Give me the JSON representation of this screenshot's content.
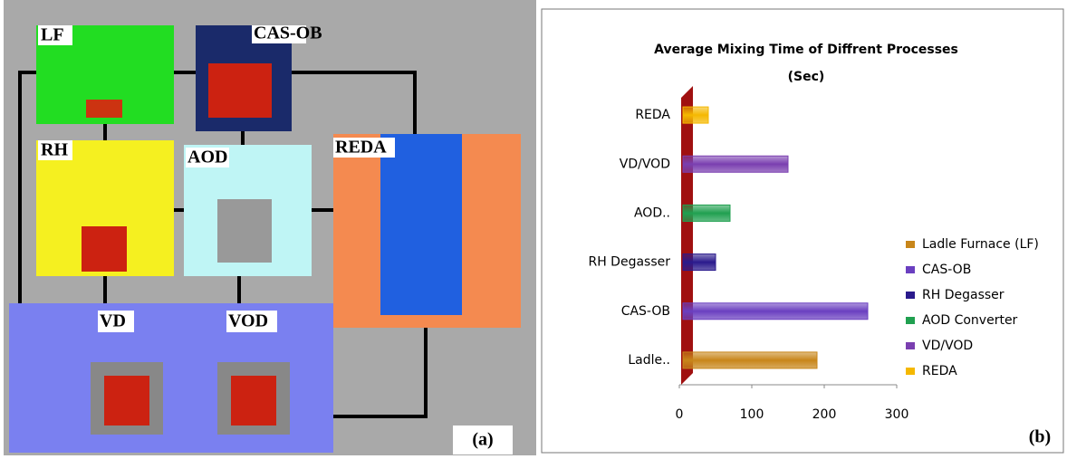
{
  "diagram": {
    "labels": [
      "LF",
      "CAS-OB",
      "RH",
      "AOD",
      "REDA",
      "VD",
      "VOD"
    ],
    "panel_label": "(a)"
  },
  "chart_data": {
    "type": "bar",
    "orientation": "horizontal",
    "title": "Average Mixing Time of Diffrent Processes",
    "subtitle": "(Sec)",
    "categories": [
      "Ladle..",
      "CAS-OB",
      "RH Degasser",
      "AOD..",
      "VD/VOD",
      "REDA"
    ],
    "series": [
      {
        "name": "Ladle Furnace (LF)",
        "color": "#c8861a",
        "values": [
          185,
          null,
          null,
          null,
          null,
          null
        ]
      },
      {
        "name": "CAS-OB",
        "color": "#6a3fc0",
        "values": [
          null,
          255,
          null,
          null,
          null,
          null
        ]
      },
      {
        "name": "RH Degasser",
        "color": "#2a1a8c",
        "values": [
          null,
          null,
          45,
          null,
          null,
          null
        ]
      },
      {
        "name": "AOD Converter",
        "color": "#20a050",
        "values": [
          null,
          null,
          null,
          65,
          null,
          null
        ]
      },
      {
        "name": "VD/VOD",
        "color": "#7a3fb0",
        "values": [
          null,
          null,
          null,
          null,
          145,
          null
        ]
      },
      {
        "name": "REDA",
        "color": "#f5b800",
        "values": [
          null,
          null,
          null,
          null,
          null,
          35
        ]
      }
    ],
    "xlim": [
      0,
      300
    ],
    "xticks": [
      0,
      100,
      200,
      300
    ],
    "legend": "right",
    "panel_label": "(b)"
  }
}
